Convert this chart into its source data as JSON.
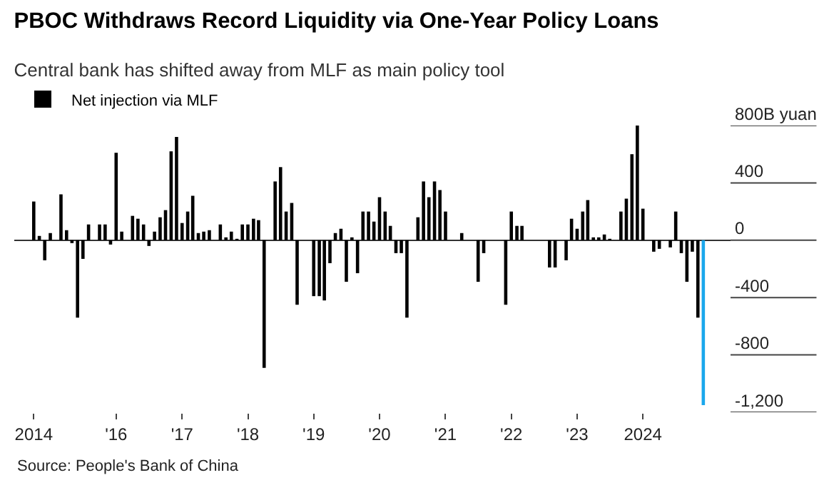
{
  "chart_data": {
    "type": "bar",
    "title": "PBOC Withdraws Record Liquidity via One-Year Policy Loans",
    "subtitle": "Central bank has shifted away from MLF as main policy tool",
    "annotations": [
      "Source: People's Bank of China"
    ],
    "x": [
      "2014-10",
      "2014-11",
      "2014-12",
      "2015-01",
      "2015-02",
      "2015-03",
      "2015-04",
      "2015-05",
      "2015-06",
      "2015-07",
      "2015-08",
      "2015-09",
      "2015-10",
      "2015-11",
      "2015-12",
      "2016-01",
      "2016-02",
      "2016-03",
      "2016-04",
      "2016-05",
      "2016-06",
      "2016-07",
      "2016-08",
      "2016-09",
      "2016-10",
      "2016-11",
      "2016-12",
      "2017-01",
      "2017-02",
      "2017-03",
      "2017-04",
      "2017-05",
      "2017-06",
      "2017-07",
      "2017-08",
      "2017-09",
      "2017-10",
      "2017-11",
      "2017-12",
      "2018-01",
      "2018-02",
      "2018-03",
      "2018-04",
      "2018-05",
      "2018-06",
      "2018-07",
      "2018-08",
      "2018-09",
      "2018-10",
      "2018-11",
      "2018-12",
      "2019-01",
      "2019-02",
      "2019-03",
      "2019-04",
      "2019-05",
      "2019-06",
      "2019-07",
      "2019-08",
      "2019-09",
      "2019-10",
      "2019-11",
      "2019-12",
      "2020-01",
      "2020-02",
      "2020-03",
      "2020-04",
      "2020-05",
      "2020-06",
      "2020-07",
      "2020-08",
      "2020-09",
      "2020-10",
      "2020-11",
      "2020-12",
      "2021-01",
      "2021-02",
      "2021-03",
      "2021-04",
      "2021-05",
      "2021-06",
      "2021-07",
      "2021-08",
      "2021-09",
      "2021-10",
      "2021-11",
      "2021-12",
      "2022-01",
      "2022-02",
      "2022-03",
      "2022-04",
      "2022-05",
      "2022-06",
      "2022-07",
      "2022-08",
      "2022-09",
      "2022-10",
      "2022-11",
      "2022-12",
      "2023-01",
      "2023-02",
      "2023-03",
      "2023-04",
      "2023-05",
      "2023-06",
      "2023-07",
      "2023-08",
      "2023-09",
      "2023-10",
      "2023-11",
      "2023-12",
      "2024-01",
      "2024-02",
      "2024-03",
      "2024-04",
      "2024-05",
      "2024-06",
      "2024-07",
      "2024-08",
      "2024-09",
      "2024-10",
      "2024-11",
      "2024-12"
    ],
    "series": [
      {
        "name": "Net injection via MLF",
        "values": [
          270,
          30,
          -140,
          50,
          0,
          320,
          70,
          -20,
          -540,
          -130,
          110,
          0,
          110,
          110,
          -30,
          610,
          60,
          0,
          170,
          150,
          110,
          -40,
          60,
          160,
          210,
          620,
          720,
          120,
          200,
          310,
          50,
          60,
          70,
          0,
          110,
          20,
          60,
          10,
          110,
          110,
          150,
          140,
          -890,
          0,
          410,
          510,
          200,
          260,
          -450,
          0,
          0,
          -390,
          -390,
          -420,
          -160,
          50,
          80,
          -290,
          20,
          -230,
          200,
          200,
          130,
          300,
          200,
          100,
          -90,
          -90,
          -540,
          0,
          160,
          410,
          300,
          410,
          350,
          200,
          0,
          0,
          50,
          0,
          0,
          -290,
          -90,
          0,
          0,
          0,
          -450,
          200,
          100,
          100,
          0,
          0,
          0,
          0,
          -190,
          -190,
          0,
          -140,
          150,
          80,
          200,
          280,
          20,
          20,
          40,
          10,
          0,
          200,
          290,
          600,
          800,
          220,
          0,
          -80,
          -60,
          0,
          -50,
          200,
          -90,
          -290,
          -80,
          -540,
          -1150
        ],
        "colors": [
          "#000000",
          "#000000",
          "#000000",
          "#000000",
          "#000000",
          "#000000",
          "#000000",
          "#000000",
          "#000000",
          "#000000",
          "#000000",
          "#000000",
          "#000000",
          "#000000",
          "#000000",
          "#000000",
          "#000000",
          "#000000",
          "#000000",
          "#000000",
          "#000000",
          "#000000",
          "#000000",
          "#000000",
          "#000000",
          "#000000",
          "#000000",
          "#000000",
          "#000000",
          "#000000",
          "#000000",
          "#000000",
          "#000000",
          "#000000",
          "#000000",
          "#000000",
          "#000000",
          "#000000",
          "#000000",
          "#000000",
          "#000000",
          "#000000",
          "#000000",
          "#000000",
          "#000000",
          "#000000",
          "#000000",
          "#000000",
          "#000000",
          "#000000",
          "#000000",
          "#000000",
          "#000000",
          "#000000",
          "#000000",
          "#000000",
          "#000000",
          "#000000",
          "#000000",
          "#000000",
          "#000000",
          "#000000",
          "#000000",
          "#000000",
          "#000000",
          "#000000",
          "#000000",
          "#000000",
          "#000000",
          "#000000",
          "#000000",
          "#000000",
          "#000000",
          "#000000",
          "#000000",
          "#000000",
          "#000000",
          "#000000",
          "#000000",
          "#000000",
          "#000000",
          "#000000",
          "#000000",
          "#000000",
          "#000000",
          "#000000",
          "#000000",
          "#000000",
          "#000000",
          "#000000",
          "#000000",
          "#000000",
          "#000000",
          "#000000",
          "#000000",
          "#000000",
          "#000000",
          "#000000",
          "#000000",
          "#000000",
          "#000000",
          "#000000",
          "#000000",
          "#000000",
          "#000000",
          "#000000",
          "#000000",
          "#000000",
          "#000000",
          "#000000",
          "#000000",
          "#000000",
          "#000000",
          "#000000",
          "#000000",
          "#000000",
          "#000000",
          "#000000",
          "#000000",
          "#000000",
          "#000000",
          "#000000",
          "#1aa7ec"
        ]
      }
    ],
    "xlim": [
      "2014-06-15",
      "2025-05-01"
    ],
    "xticks": [
      {
        "value": "2014-10",
        "label": "2014"
      },
      {
        "value": "2016-01",
        "label": "'16"
      },
      {
        "value": "2017-01",
        "label": "'17"
      },
      {
        "value": "2018-01",
        "label": "'18"
      },
      {
        "value": "2019-01",
        "label": "'19"
      },
      {
        "value": "2020-01",
        "label": "'20"
      },
      {
        "value": "2021-01",
        "label": "'21"
      },
      {
        "value": "2022-01",
        "label": "'22"
      },
      {
        "value": "2023-01",
        "label": "'23"
      },
      {
        "value": "2024-01",
        "label": "2024"
      }
    ],
    "ylim": [
      -1200,
      800
    ],
    "yticks": [
      {
        "value": 800,
        "label": "800B yuan"
      },
      400,
      0,
      {
        "value": -400,
        "label": "-400"
      },
      {
        "value": -800,
        "label": "-800"
      },
      {
        "value": -1200,
        "label": "-1,200"
      }
    ],
    "grid": "y",
    "legend": "top left"
  }
}
